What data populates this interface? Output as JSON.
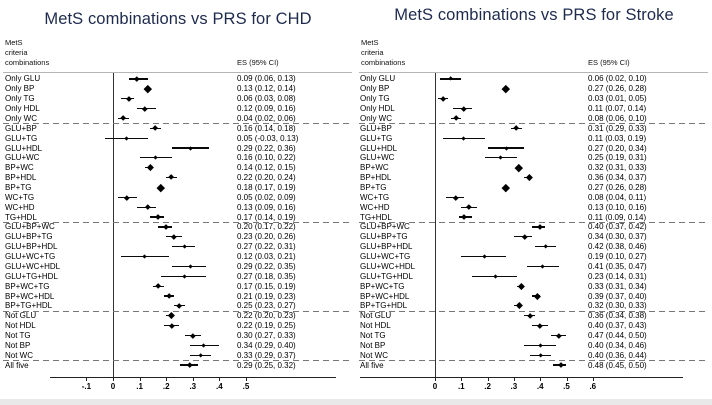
{
  "colors": {
    "title": "#1e2b4f",
    "marker": "#000000",
    "separator": "#777777"
  },
  "chart_data": [
    {
      "type": "scatter",
      "variant": "forest-plot",
      "title": "MetS combinations vs PRS for CHD",
      "header": {
        "criteria": "MetS\ncriteria\ncombinations",
        "es": "ES (95% CI)"
      },
      "xlabel": "",
      "xlim": [
        -0.24,
        0.84
      ],
      "x_ticks": [
        {
          "v": -0.1,
          "label": "-.1"
        },
        {
          "v": 0,
          "label": "0"
        },
        {
          "v": 0.1,
          "label": ".1"
        },
        {
          "v": 0.2,
          "label": ".2"
        },
        {
          "v": 0.3,
          "label": ".3"
        },
        {
          "v": 0.4,
          "label": ".4"
        },
        {
          "v": 0.5,
          "label": ".5"
        }
      ],
      "separators_after_rows": [
        5,
        15,
        24,
        29
      ],
      "rows": [
        {
          "label": "Only GLU",
          "es": 0.09,
          "ci_low": 0.06,
          "ci_high": 0.13,
          "es_text": "0.09 (0.06, 0.13)"
        },
        {
          "label": "Only BP",
          "es": 0.13,
          "ci_low": 0.12,
          "ci_high": 0.14,
          "es_text": "0.13 (0.12, 0.14)"
        },
        {
          "label": "Only TG",
          "es": 0.06,
          "ci_low": 0.03,
          "ci_high": 0.08,
          "es_text": "0.06 (0.03, 0.08)"
        },
        {
          "label": "Only HDL",
          "es": 0.12,
          "ci_low": 0.09,
          "ci_high": 0.16,
          "es_text": "0.12 (0.09, 0.16)"
        },
        {
          "label": "Only WC",
          "es": 0.04,
          "ci_low": 0.02,
          "ci_high": 0.06,
          "es_text": "0.04 (0.02, 0.06)"
        },
        {
          "label": "GLU+BP",
          "es": 0.16,
          "ci_low": 0.14,
          "ci_high": 0.18,
          "es_text": "0.16 (0.14, 0.18)"
        },
        {
          "label": "GLU+TG",
          "es": 0.05,
          "ci_low": -0.03,
          "ci_high": 0.13,
          "es_text": "0.05 (-0.03, 0.13)"
        },
        {
          "label": "GLU+HDL",
          "es": 0.29,
          "ci_low": 0.22,
          "ci_high": 0.36,
          "es_text": "0.29 (0.22, 0.36)"
        },
        {
          "label": "GLU+WC",
          "es": 0.16,
          "ci_low": 0.1,
          "ci_high": 0.22,
          "es_text": "0.16 (0.10, 0.22)"
        },
        {
          "label": "BP+WC",
          "es": 0.14,
          "ci_low": 0.12,
          "ci_high": 0.15,
          "es_text": "0.14 (0.12, 0.15)"
        },
        {
          "label": "BP+HDL",
          "es": 0.22,
          "ci_low": 0.2,
          "ci_high": 0.24,
          "es_text": "0.22 (0.20, 0.24)"
        },
        {
          "label": "BP+TG",
          "es": 0.18,
          "ci_low": 0.17,
          "ci_high": 0.19,
          "es_text": "0.18 (0.17, 0.19)"
        },
        {
          "label": "WC+TG",
          "es": 0.05,
          "ci_low": 0.02,
          "ci_high": 0.09,
          "es_text": "0.05 (0.02, 0.09)"
        },
        {
          "label": "WC+HD",
          "es": 0.13,
          "ci_low": 0.09,
          "ci_high": 0.16,
          "es_text": "0.13 (0.09, 0.16)"
        },
        {
          "label": "TG+HDL",
          "es": 0.17,
          "ci_low": 0.14,
          "ci_high": 0.19,
          "es_text": "0.17 (0.14, 0.19)"
        },
        {
          "label": "GLU+BP+WC",
          "es": 0.2,
          "ci_low": 0.17,
          "ci_high": 0.22,
          "es_text": "0.20 (0.17, 0.22)"
        },
        {
          "label": "GLU+BP+TG",
          "es": 0.23,
          "ci_low": 0.2,
          "ci_high": 0.26,
          "es_text": "0.23 (0.20, 0.26)"
        },
        {
          "label": "GLU+BP+HDL",
          "es": 0.27,
          "ci_low": 0.22,
          "ci_high": 0.31,
          "es_text": "0.27 (0.22, 0.31)"
        },
        {
          "label": "GLU+WC+TG",
          "es": 0.12,
          "ci_low": 0.03,
          "ci_high": 0.21,
          "es_text": "0.12 (0.03, 0.21)"
        },
        {
          "label": "GLU+WC+HDL",
          "es": 0.29,
          "ci_low": 0.22,
          "ci_high": 0.35,
          "es_text": "0.29 (0.22, 0.35)"
        },
        {
          "label": "GLU+TG+HDL",
          "es": 0.27,
          "ci_low": 0.18,
          "ci_high": 0.35,
          "es_text": "0.27 (0.18, 0.35)"
        },
        {
          "label": "BP+WC+TG",
          "es": 0.17,
          "ci_low": 0.15,
          "ci_high": 0.19,
          "es_text": "0.17 (0.15, 0.19)"
        },
        {
          "label": "BP+WC+HDL",
          "es": 0.21,
          "ci_low": 0.19,
          "ci_high": 0.23,
          "es_text": "0.21 (0.19, 0.23)"
        },
        {
          "label": "BP+TG+HDL",
          "es": 0.25,
          "ci_low": 0.23,
          "ci_high": 0.27,
          "es_text": "0.25 (0.23, 0.27)"
        },
        {
          "label": "Not GLU",
          "es": 0.22,
          "ci_low": 0.2,
          "ci_high": 0.23,
          "es_text": "0.22 (0.20, 0.23)"
        },
        {
          "label": "Not HDL",
          "es": 0.22,
          "ci_low": 0.19,
          "ci_high": 0.25,
          "es_text": "0.22 (0.19, 0.25)"
        },
        {
          "label": "Not TG",
          "es": 0.3,
          "ci_low": 0.27,
          "ci_high": 0.33,
          "es_text": "0.30 (0.27, 0.33)"
        },
        {
          "label": "Not BP",
          "es": 0.34,
          "ci_low": 0.29,
          "ci_high": 0.4,
          "es_text": "0.34 (0.29, 0.40)"
        },
        {
          "label": "Not WC",
          "es": 0.33,
          "ci_low": 0.29,
          "ci_high": 0.37,
          "es_text": "0.33 (0.29, 0.37)"
        },
        {
          "label": "All five",
          "es": 0.29,
          "ci_low": 0.25,
          "ci_high": 0.32,
          "es_text": "0.29 (0.25, 0.32)"
        }
      ]
    },
    {
      "type": "scatter",
      "variant": "forest-plot",
      "title": "MetS combinations vs PRS for Stroke",
      "header": {
        "criteria": "MetS\ncriteria\ncombinations",
        "es": "ES (95% CI)"
      },
      "xlabel": "",
      "xlim": [
        -0.28,
        0.94
      ],
      "x_ticks": [
        {
          "v": 0,
          "label": "0"
        },
        {
          "v": 0.1,
          "label": ".1"
        },
        {
          "v": 0.2,
          "label": ".2"
        },
        {
          "v": 0.3,
          "label": ".3"
        },
        {
          "v": 0.4,
          "label": ".4"
        },
        {
          "v": 0.5,
          "label": ".5"
        },
        {
          "v": 0.6,
          "label": ".6"
        }
      ],
      "separators_after_rows": [
        5,
        15,
        24,
        29
      ],
      "rows": [
        {
          "label": "Only GLU",
          "es": 0.06,
          "ci_low": 0.02,
          "ci_high": 0.1,
          "es_text": "0.06 (0.02, 0.10)"
        },
        {
          "label": "Only BP",
          "es": 0.27,
          "ci_low": 0.26,
          "ci_high": 0.28,
          "es_text": "0.27 (0.26, 0.28)"
        },
        {
          "label": "Only TG",
          "es": 0.03,
          "ci_low": 0.01,
          "ci_high": 0.05,
          "es_text": "0.03 (0.01, 0.05)"
        },
        {
          "label": "Only HDL",
          "es": 0.11,
          "ci_low": 0.07,
          "ci_high": 0.14,
          "es_text": "0.11 (0.07, 0.14)"
        },
        {
          "label": "Only WC",
          "es": 0.08,
          "ci_low": 0.06,
          "ci_high": 0.1,
          "es_text": "0.08 (0.06, 0.10)"
        },
        {
          "label": "GLU+BP",
          "es": 0.31,
          "ci_low": 0.29,
          "ci_high": 0.33,
          "es_text": "0.31 (0.29, 0.33)"
        },
        {
          "label": "GLU+TG",
          "es": 0.11,
          "ci_low": 0.03,
          "ci_high": 0.19,
          "es_text": "0.11 (0.03, 0.19)"
        },
        {
          "label": "GLU+HDL",
          "es": 0.27,
          "ci_low": 0.2,
          "ci_high": 0.34,
          "es_text": "0.27 (0.20, 0.34)"
        },
        {
          "label": "GLU+WC",
          "es": 0.25,
          "ci_low": 0.19,
          "ci_high": 0.31,
          "es_text": "0.25 (0.19, 0.31)"
        },
        {
          "label": "BP+WC",
          "es": 0.32,
          "ci_low": 0.31,
          "ci_high": 0.33,
          "es_text": "0.32 (0.31, 0.33)"
        },
        {
          "label": "BP+HDL",
          "es": 0.36,
          "ci_low": 0.34,
          "ci_high": 0.37,
          "es_text": "0.36 (0.34, 0.37)"
        },
        {
          "label": "BP+TG",
          "es": 0.27,
          "ci_low": 0.26,
          "ci_high": 0.28,
          "es_text": "0.27 (0.26, 0.28)"
        },
        {
          "label": "WC+TG",
          "es": 0.08,
          "ci_low": 0.04,
          "ci_high": 0.11,
          "es_text": "0.08 (0.04, 0.11)"
        },
        {
          "label": "WC+HD",
          "es": 0.13,
          "ci_low": 0.1,
          "ci_high": 0.16,
          "es_text": "0.13 (0.10, 0.16)"
        },
        {
          "label": "TG+HDL",
          "es": 0.11,
          "ci_low": 0.09,
          "ci_high": 0.14,
          "es_text": "0.11 (0.09, 0.14)"
        },
        {
          "label": "GLU+BP+WC",
          "es": 0.4,
          "ci_low": 0.37,
          "ci_high": 0.42,
          "es_text": "0.40 (0.37, 0.42)"
        },
        {
          "label": "GLU+BP+TG",
          "es": 0.34,
          "ci_low": 0.3,
          "ci_high": 0.37,
          "es_text": "0.34 (0.30, 0.37)"
        },
        {
          "label": "GLU+BP+HDL",
          "es": 0.42,
          "ci_low": 0.38,
          "ci_high": 0.46,
          "es_text": "0.42 (0.38, 0.46)"
        },
        {
          "label": "GLU+WC+TG",
          "es": 0.19,
          "ci_low": 0.1,
          "ci_high": 0.27,
          "es_text": "0.19 (0.10, 0.27)"
        },
        {
          "label": "GLU+WC+HDL",
          "es": 0.41,
          "ci_low": 0.35,
          "ci_high": 0.47,
          "es_text": "0.41 (0.35, 0.47)"
        },
        {
          "label": "GLU+TG+HDL",
          "es": 0.23,
          "ci_low": 0.14,
          "ci_high": 0.31,
          "es_text": "0.23 (0.14, 0.31)"
        },
        {
          "label": "BP+WC+TG",
          "es": 0.33,
          "ci_low": 0.31,
          "ci_high": 0.34,
          "es_text": "0.33 (0.31, 0.34)"
        },
        {
          "label": "BP+WC+HDL",
          "es": 0.39,
          "ci_low": 0.37,
          "ci_high": 0.4,
          "es_text": "0.39 (0.37, 0.40)"
        },
        {
          "label": "BP+TG+HDL",
          "es": 0.32,
          "ci_low": 0.3,
          "ci_high": 0.33,
          "es_text": "0.32 (0.30, 0.33)"
        },
        {
          "label": "Not GLU",
          "es": 0.36,
          "ci_low": 0.34,
          "ci_high": 0.38,
          "es_text": "0.36 (0.34, 0.38)"
        },
        {
          "label": "Not HDL",
          "es": 0.4,
          "ci_low": 0.37,
          "ci_high": 0.43,
          "es_text": "0.40 (0.37, 0.43)"
        },
        {
          "label": "Not TG",
          "es": 0.47,
          "ci_low": 0.44,
          "ci_high": 0.5,
          "es_text": "0.47 (0.44, 0.50)"
        },
        {
          "label": "Not BP",
          "es": 0.4,
          "ci_low": 0.34,
          "ci_high": 0.46,
          "es_text": "0.40 (0.34, 0.46)"
        },
        {
          "label": "Not WC",
          "es": 0.4,
          "ci_low": 0.36,
          "ci_high": 0.44,
          "es_text": "0.40 (0.36, 0.44)"
        },
        {
          "label": "All five",
          "es": 0.48,
          "ci_low": 0.45,
          "ci_high": 0.5,
          "es_text": "0.48 (0.45, 0.50)"
        }
      ]
    }
  ]
}
